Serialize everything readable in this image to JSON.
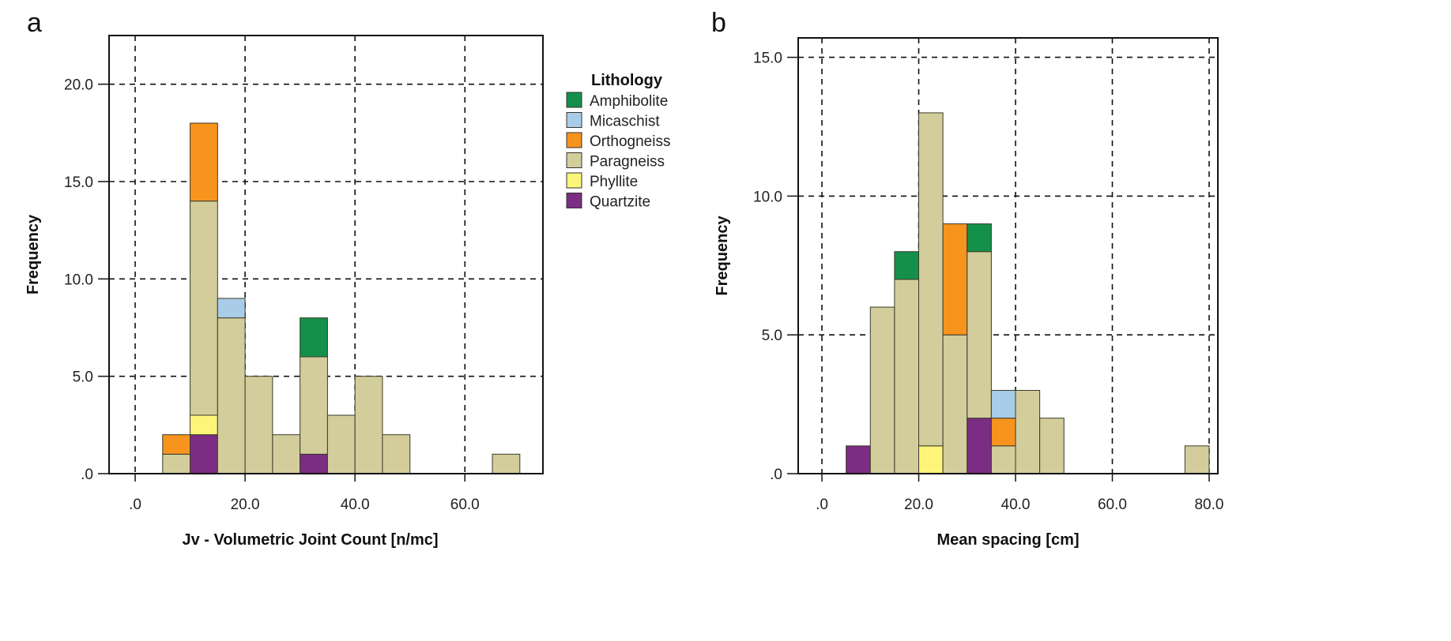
{
  "legend": {
    "title": "Lithology",
    "items": [
      {
        "name": "Amphibolite",
        "color": "#14904a"
      },
      {
        "name": "Micaschist",
        "color": "#a9cde9"
      },
      {
        "name": "Orthogneiss",
        "color": "#f7941d"
      },
      {
        "name": "Paragneiss",
        "color": "#d3cd9c"
      },
      {
        "name": "Phyllite",
        "color": "#fdf57a"
      },
      {
        "name": "Quartzite",
        "color": "#7b2d83"
      }
    ]
  },
  "stack_order": [
    "Quartzite",
    "Phyllite",
    "Paragneiss",
    "Orthogneiss",
    "Micaschist",
    "Amphibolite"
  ],
  "chart_data": [
    {
      "type": "bar",
      "subtype": "stacked-histogram",
      "panel_label": "a",
      "xlabel": "Jv - Volumetric Joint Count [n/mc]",
      "ylabel": "Frequency",
      "xlim": [
        -4.75,
        74.2
      ],
      "ylim": [
        0,
        22.5
      ],
      "grid": true,
      "legend_position": "right-outside",
      "xticks": [
        {
          "v": 0,
          "label": ".0"
        },
        {
          "v": 20,
          "label": "20.0"
        },
        {
          "v": 40,
          "label": "40.0"
        },
        {
          "v": 60,
          "label": "60.0"
        }
      ],
      "yticks": [
        {
          "v": 0,
          "label": ".0"
        },
        {
          "v": 5,
          "label": "5.0"
        },
        {
          "v": 10,
          "label": "10.0"
        },
        {
          "v": 15,
          "label": "15.0"
        },
        {
          "v": 20,
          "label": "20.0"
        }
      ],
      "bins": [
        {
          "range": [
            5,
            10
          ],
          "counts": {
            "Paragneiss": 1,
            "Orthogneiss": 1
          }
        },
        {
          "range": [
            10,
            15
          ],
          "counts": {
            "Quartzite": 2,
            "Phyllite": 1,
            "Paragneiss": 11,
            "Orthogneiss": 4
          }
        },
        {
          "range": [
            15,
            20
          ],
          "counts": {
            "Paragneiss": 8,
            "Micaschist": 1
          }
        },
        {
          "range": [
            20,
            25
          ],
          "counts": {
            "Paragneiss": 5
          }
        },
        {
          "range": [
            25,
            30
          ],
          "counts": {
            "Paragneiss": 2
          }
        },
        {
          "range": [
            30,
            35
          ],
          "counts": {
            "Quartzite": 1,
            "Paragneiss": 5,
            "Amphibolite": 2
          }
        },
        {
          "range": [
            35,
            40
          ],
          "counts": {
            "Paragneiss": 3
          }
        },
        {
          "range": [
            40,
            45
          ],
          "counts": {
            "Paragneiss": 5
          }
        },
        {
          "range": [
            45,
            50
          ],
          "counts": {
            "Paragneiss": 2
          }
        },
        {
          "range": [
            65,
            70
          ],
          "counts": {
            "Paragneiss": 1
          }
        }
      ]
    },
    {
      "type": "bar",
      "subtype": "stacked-histogram",
      "panel_label": "b",
      "xlabel": "Mean spacing [cm]",
      "ylabel": "Frequency",
      "xlim": [
        -4.9,
        81.8
      ],
      "ylim": [
        0,
        15.7
      ],
      "grid": true,
      "xticks": [
        {
          "v": 0,
          "label": ".0"
        },
        {
          "v": 20,
          "label": "20.0"
        },
        {
          "v": 40,
          "label": "40.0"
        },
        {
          "v": 60,
          "label": "60.0"
        },
        {
          "v": 80,
          "label": "80.0"
        }
      ],
      "yticks": [
        {
          "v": 0,
          "label": ".0"
        },
        {
          "v": 5,
          "label": "5.0"
        },
        {
          "v": 10,
          "label": "10.0"
        },
        {
          "v": 15,
          "label": "15.0"
        }
      ],
      "bins": [
        {
          "range": [
            5,
            10
          ],
          "counts": {
            "Quartzite": 1
          }
        },
        {
          "range": [
            10,
            15
          ],
          "counts": {
            "Paragneiss": 6
          }
        },
        {
          "range": [
            15,
            20
          ],
          "counts": {
            "Paragneiss": 7,
            "Amphibolite": 1
          }
        },
        {
          "range": [
            20,
            25
          ],
          "counts": {
            "Phyllite": 1,
            "Paragneiss": 12
          }
        },
        {
          "range": [
            25,
            30
          ],
          "counts": {
            "Paragneiss": 5,
            "Orthogneiss": 4
          }
        },
        {
          "range": [
            30,
            35
          ],
          "counts": {
            "Quartzite": 2,
            "Paragneiss": 6,
            "Amphibolite": 1
          }
        },
        {
          "range": [
            35,
            40
          ],
          "counts": {
            "Paragneiss": 1,
            "Orthogneiss": 1,
            "Micaschist": 1
          }
        },
        {
          "range": [
            40,
            45
          ],
          "counts": {
            "Paragneiss": 3
          }
        },
        {
          "range": [
            45,
            50
          ],
          "counts": {
            "Paragneiss": 2
          }
        },
        {
          "range": [
            75,
            80
          ],
          "counts": {
            "Paragneiss": 1
          }
        }
      ]
    }
  ]
}
